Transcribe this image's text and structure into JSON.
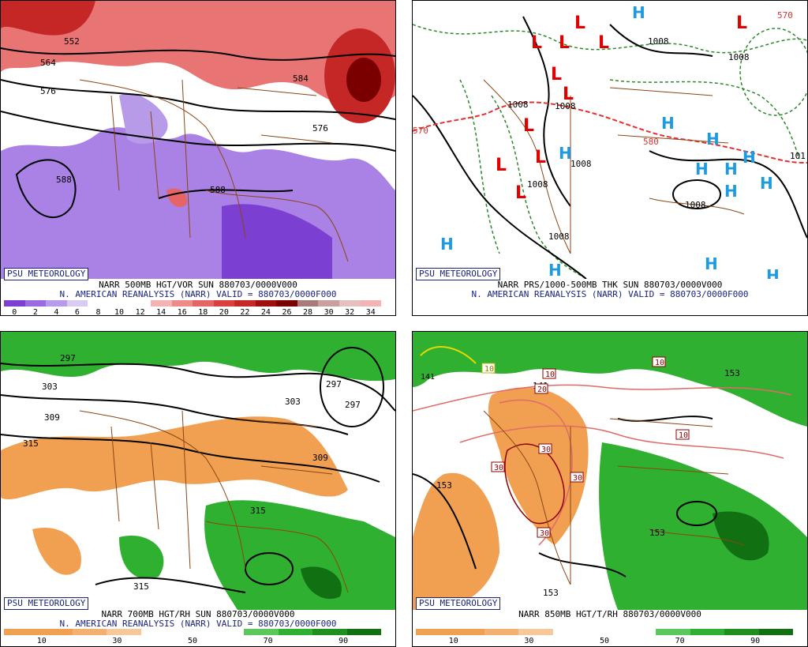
{
  "badge": "PSU METEOROLOGY",
  "panels": [
    {
      "caption_line1": "NARR 500MB HGT/VOR SUN 880703/0000V000",
      "caption_line2": "N. AMERICAN REANALYSIS (NARR) VALID = 880703/0000F000",
      "colorbar": [
        "#7b3fd1",
        "#9b6be0",
        "#b79ae8",
        "#d9ccf3",
        "#ffffff",
        "#ffffff",
        "#ffffff",
        "#f4b2b2",
        "#ee8a8a",
        "#e56565",
        "#d94040",
        "#c52626",
        "#9e1010",
        "#7a0000",
        "#a87a7a",
        "#c8a0a0",
        "#e4c0c0",
        "#f2b4b4"
      ],
      "ticks": [
        "0",
        "2",
        "4",
        "6",
        "8",
        "10",
        "12",
        "14",
        "16",
        "18",
        "20",
        "22",
        "24",
        "26",
        "28",
        "30",
        "32",
        "34"
      ],
      "labels": [
        "552",
        "564",
        "576",
        "588",
        "584",
        "576",
        "588"
      ]
    },
    {
      "caption_line1": "NARR PRS/1000-500MB THK SUN 880703/0000V000",
      "caption_line2": "N. AMERICAN REANALYSIS (NARR) VALID = 880703/0000F000",
      "labels": [
        "1008",
        "1008",
        "1008",
        "1008",
        "1008",
        "1008",
        "1008",
        "1008",
        "570",
        "580",
        "570",
        "101"
      ],
      "highs": "H",
      "lows": "L"
    },
    {
      "caption_line1": "NARR 700MB HGT/RH SUN 880703/0000V000",
      "caption_line2": "N. AMERICAN REANALYSIS (NARR) VALID = 880703/0000F000",
      "colorbar": [
        "#f0a050",
        "#f0a050",
        "#f4b070",
        "#f8c89a",
        "#ffffff",
        "#ffffff",
        "#ffffff",
        "#5cc85c",
        "#30b030",
        "#1f8f1f",
        "#117011"
      ],
      "ticks": [
        "10",
        "30",
        "50",
        "70",
        "90"
      ],
      "labels": [
        "303",
        "309",
        "315",
        "297",
        "303",
        "297",
        "309",
        "315",
        "315",
        "297"
      ]
    },
    {
      "caption_line1": "NARR 850MB HGT/T/RH 880703/0000V000",
      "caption_line2": "",
      "colorbar": [
        "#f0a050",
        "#f0a050",
        "#f4b070",
        "#f8c89a",
        "#ffffff",
        "#ffffff",
        "#ffffff",
        "#5cc85c",
        "#30b030",
        "#1f8f1f",
        "#117011"
      ],
      "ticks": [
        "10",
        "30",
        "50",
        "70",
        "90"
      ],
      "labels": [
        "153",
        "153",
        "153",
        "141",
        "153",
        "10",
        "20",
        "30",
        "30",
        "30",
        "30",
        "10",
        "10",
        "10",
        "141"
      ]
    }
  ]
}
